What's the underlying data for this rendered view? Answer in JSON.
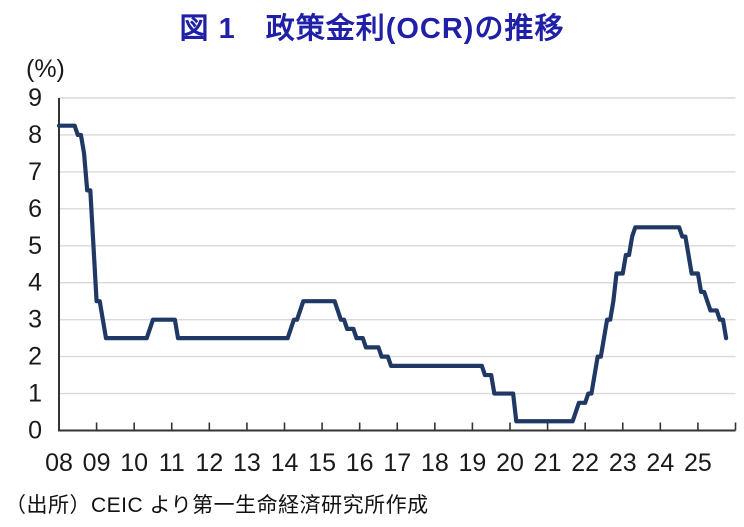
{
  "page": {
    "title": "図 1　政策金利(OCR)の推移",
    "source_note": "（出所）CEIC より第一生命経済研究所作成"
  },
  "colors": {
    "title_text": "#1F1FA8",
    "series_line": "#1F3864",
    "gridline": "#D9D9D9",
    "axis": "#333333",
    "tick_text": "#1A1A1A"
  },
  "chart_data": {
    "type": "line",
    "title": "図 1　政策金利(OCR)の推移",
    "unit_label": "(%)",
    "ylabel": "(%)",
    "ylim": [
      0,
      9
    ],
    "yticks": [
      0,
      1,
      2,
      3,
      4,
      5,
      6,
      7,
      8,
      9
    ],
    "x_tick_labels": [
      "08",
      "09",
      "10",
      "11",
      "12",
      "13",
      "14",
      "15",
      "16",
      "17",
      "18",
      "19",
      "20",
      "21",
      "22",
      "23",
      "24",
      "25"
    ],
    "frequency": "monthly",
    "x_start": "2008-01",
    "x_end": "2025-10",
    "grid": "horizontal",
    "legend": "none",
    "series": [
      {
        "name": "政策金利(OCR)",
        "color": "#1F3864",
        "monthly_values_by_year": {
          "2008": [
            8.25,
            8.25,
            8.25,
            8.25,
            8.25,
            8.25,
            8.0,
            8.0,
            7.5,
            6.5,
            6.5,
            5.0
          ],
          "2009": [
            3.5,
            3.5,
            3.0,
            2.5,
            2.5,
            2.5,
            2.5,
            2.5,
            2.5,
            2.5,
            2.5,
            2.5
          ],
          "2010": [
            2.5,
            2.5,
            2.5,
            2.5,
            2.5,
            2.75,
            3.0,
            3.0,
            3.0,
            3.0,
            3.0,
            3.0
          ],
          "2011": [
            3.0,
            3.0,
            2.5,
            2.5,
            2.5,
            2.5,
            2.5,
            2.5,
            2.5,
            2.5,
            2.5,
            2.5
          ],
          "2012": [
            2.5,
            2.5,
            2.5,
            2.5,
            2.5,
            2.5,
            2.5,
            2.5,
            2.5,
            2.5,
            2.5,
            2.5
          ],
          "2013": [
            2.5,
            2.5,
            2.5,
            2.5,
            2.5,
            2.5,
            2.5,
            2.5,
            2.5,
            2.5,
            2.5,
            2.5
          ],
          "2014": [
            2.5,
            2.5,
            2.75,
            3.0,
            3.0,
            3.25,
            3.5,
            3.5,
            3.5,
            3.5,
            3.5,
            3.5
          ],
          "2015": [
            3.5,
            3.5,
            3.5,
            3.5,
            3.5,
            3.25,
            3.0,
            3.0,
            2.75,
            2.75,
            2.75,
            2.5
          ],
          "2016": [
            2.5,
            2.5,
            2.25,
            2.25,
            2.25,
            2.25,
            2.25,
            2.0,
            2.0,
            2.0,
            1.75,
            1.75
          ],
          "2017": [
            1.75,
            1.75,
            1.75,
            1.75,
            1.75,
            1.75,
            1.75,
            1.75,
            1.75,
            1.75,
            1.75,
            1.75
          ],
          "2018": [
            1.75,
            1.75,
            1.75,
            1.75,
            1.75,
            1.75,
            1.75,
            1.75,
            1.75,
            1.75,
            1.75,
            1.75
          ],
          "2019": [
            1.75,
            1.75,
            1.75,
            1.75,
            1.5,
            1.5,
            1.5,
            1.0,
            1.0,
            1.0,
            1.0,
            1.0
          ],
          "2020": [
            1.0,
            1.0,
            0.25,
            0.25,
            0.25,
            0.25,
            0.25,
            0.25,
            0.25,
            0.25,
            0.25,
            0.25
          ],
          "2021": [
            0.25,
            0.25,
            0.25,
            0.25,
            0.25,
            0.25,
            0.25,
            0.25,
            0.25,
            0.5,
            0.75,
            0.75
          ],
          "2022": [
            0.75,
            1.0,
            1.0,
            1.5,
            2.0,
            2.0,
            2.5,
            3.0,
            3.0,
            3.5,
            4.25,
            4.25
          ],
          "2023": [
            4.25,
            4.75,
            4.75,
            5.25,
            5.5,
            5.5,
            5.5,
            5.5,
            5.5,
            5.5,
            5.5,
            5.5
          ],
          "2024": [
            5.5,
            5.5,
            5.5,
            5.5,
            5.5,
            5.5,
            5.5,
            5.25,
            5.25,
            4.75,
            4.25,
            4.25
          ],
          "2025": [
            4.25,
            3.75,
            3.75,
            3.5,
            3.25,
            3.25,
            3.25,
            3.0,
            3.0,
            2.5
          ]
        }
      }
    ]
  }
}
